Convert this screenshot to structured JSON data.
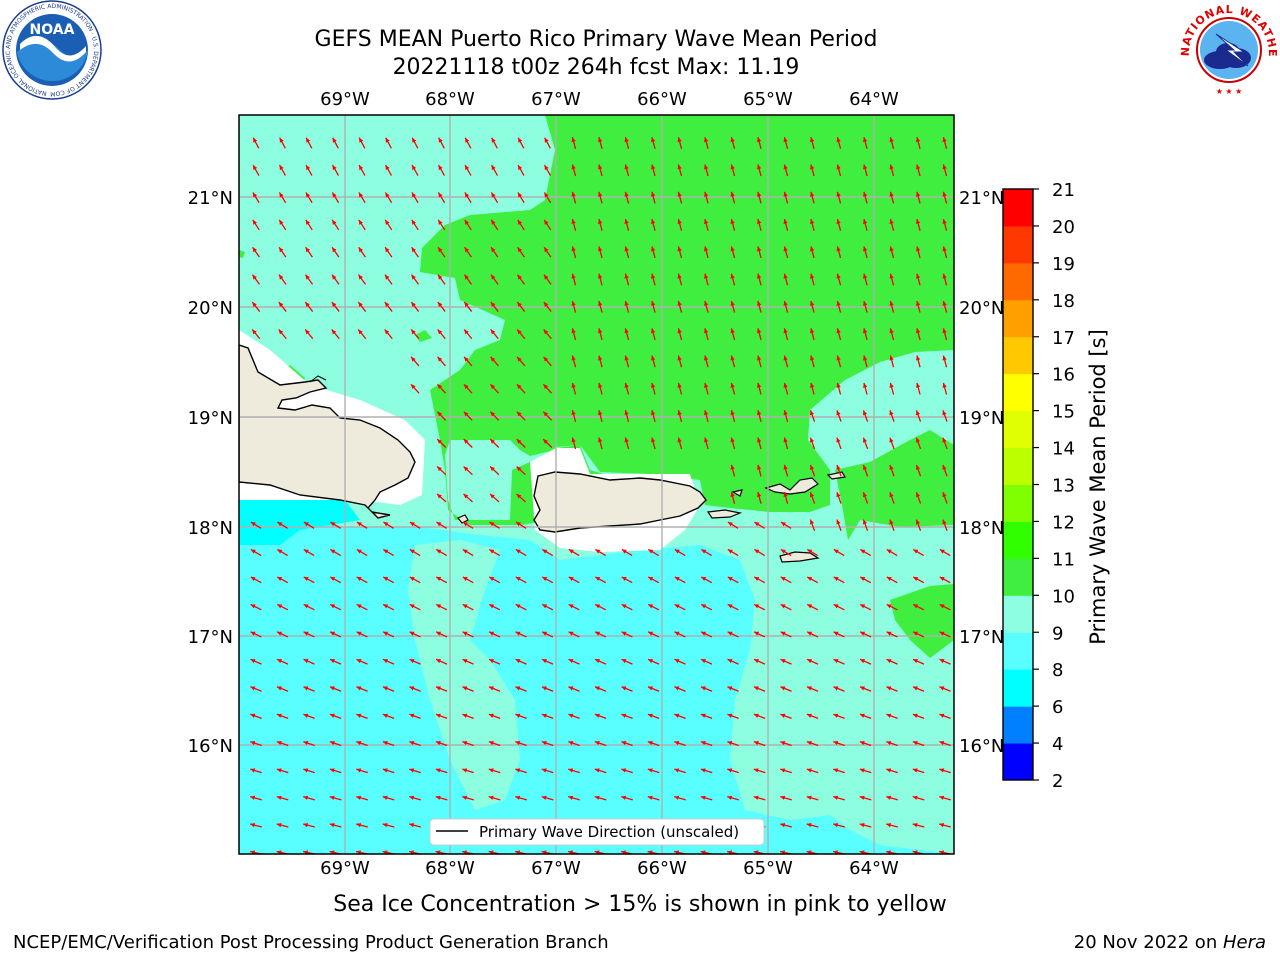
{
  "header": {
    "title_line1": "GEFS MEAN Puerto Rico Primary Wave Mean Period",
    "title_line2": "20221118 t00z 264h fcst   Max: 11.19"
  },
  "logos": {
    "noaa_text": "NOAA",
    "noaa_ring_text": "NATIONAL OCEANIC AND ATMOSPHERIC ADMINISTRATION · U.S. DEPARTMENT OF COMMERCE",
    "nws_ring_text": "NATIONAL WEATHER SERVICE"
  },
  "map": {
    "lon_labels": [
      "69°W",
      "68°W",
      "67°W",
      "66°W",
      "65°W",
      "64°W"
    ],
    "lat_labels": [
      "21°N",
      "20°N",
      "19°N",
      "18°N",
      "17°N",
      "16°N"
    ],
    "legend_label": "Primary Wave Direction (unscaled)",
    "arrow_color": "#ff0000",
    "land_color": "#efebdc",
    "grid_color": "#b0b0b0"
  },
  "colorbar": {
    "label": "Primary Wave Mean Period [s]",
    "ticks": [
      "2",
      "4",
      "6",
      "8",
      "9",
      "10",
      "11",
      "12",
      "13",
      "14",
      "15",
      "16",
      "17",
      "18",
      "19",
      "20",
      "21"
    ],
    "colors": [
      "#0000ff",
      "#0080ff",
      "#00ffff",
      "#59ffff",
      "#8dffe0",
      "#40ee40",
      "#30ff00",
      "#80ff00",
      "#bbff00",
      "#e0ff00",
      "#ffff00",
      "#ffc800",
      "#ffa000",
      "#ff6a00",
      "#ff3800",
      "#ff0000"
    ]
  },
  "footer": {
    "caption": "Sea Ice Concentration > 15% is shown in pink to yellow",
    "left": "NCEP/EMC/Verification Post Processing Product Generation Branch",
    "right_date": "20 Nov 2022 on ",
    "right_host": "Hera"
  }
}
